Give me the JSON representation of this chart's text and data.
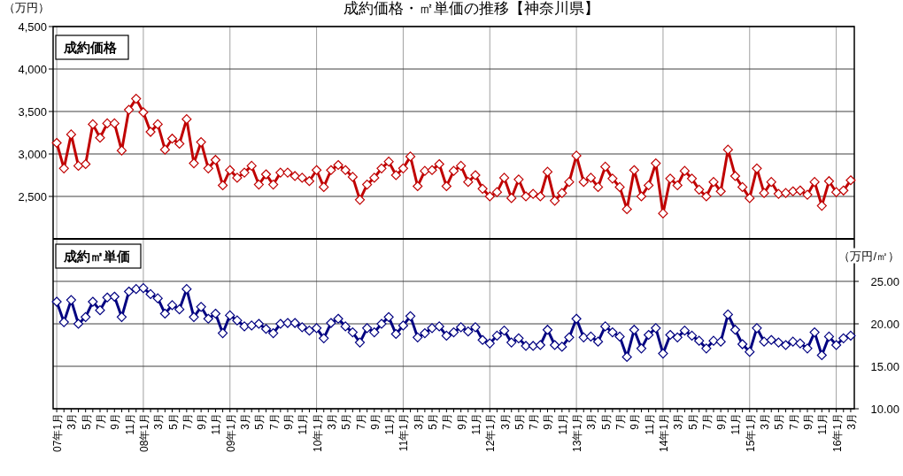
{
  "chart_data": {
    "type": "line",
    "title": "成約価格・㎡単価の推移【神奈川県】",
    "ylabel": "（万円）",
    "y2label": "（万円/㎡）",
    "annotations": [
      "成約価格",
      "成約㎡単価"
    ],
    "categories": [
      "07年1月",
      null,
      "3月",
      null,
      "5月",
      null,
      "7月",
      null,
      "9月",
      null,
      "11月",
      null,
      "08年1月",
      null,
      "3月",
      null,
      "5月",
      null,
      "7月",
      null,
      "9月",
      null,
      "11月",
      null,
      "09年1月",
      null,
      "3月",
      null,
      "5月",
      null,
      "7月",
      null,
      "9月",
      null,
      "11月",
      null,
      "10年1月",
      null,
      "3月",
      null,
      "5月",
      null,
      "7月",
      null,
      "9月",
      null,
      "11月",
      null,
      "11年1月",
      null,
      "3月",
      null,
      "5月",
      null,
      "7月",
      null,
      "9月",
      null,
      "11月",
      null,
      "12年1月",
      null,
      "3月",
      null,
      "5月",
      null,
      "7月",
      null,
      "9月",
      null,
      "11月",
      null,
      "13年1月",
      null,
      "3月",
      null,
      "5月",
      null,
      "7月",
      null,
      "9月",
      null,
      "11月",
      null,
      "14年1月",
      null,
      "3月",
      null,
      "5月",
      null,
      "7月",
      null,
      "9月",
      null,
      "11月",
      null,
      "15年1月",
      null,
      "3月",
      null,
      "5月",
      null,
      "7月",
      null,
      "9月",
      null,
      "11月",
      null,
      "16年1月",
      null,
      "3月"
    ],
    "series": [
      {
        "color": "#c00000",
        "values": [
          3130,
          2830,
          3230,
          2860,
          2880,
          3350,
          3190,
          3360,
          3360,
          3040,
          3520,
          3650,
          3490,
          3260,
          3350,
          3050,
          3180,
          3120,
          3410,
          2890,
          3140,
          2830,
          2930,
          2630,
          2810,
          2720,
          2780,
          2860,
          2640,
          2760,
          2640,
          2780,
          2780,
          2740,
          2720,
          2680,
          2810,
          2610,
          2810,
          2870,
          2810,
          2730,
          2460,
          2640,
          2720,
          2830,
          2910,
          2750,
          2830,
          2970,
          2620,
          2800,
          2810,
          2880,
          2620,
          2800,
          2860,
          2670,
          2750,
          2590,
          2500,
          2550,
          2720,
          2480,
          2700,
          2500,
          2530,
          2500,
          2790,
          2450,
          2540,
          2670,
          2980,
          2670,
          2720,
          2610,
          2850,
          2710,
          2610,
          2350,
          2810,
          2500,
          2630,
          2890,
          2300,
          2710,
          2630,
          2800,
          2710,
          2580,
          2500,
          2670,
          2560,
          3050,
          2740,
          2610,
          2480,
          2830,
          2540,
          2670,
          2530,
          2540,
          2560,
          2570,
          2520,
          2670,
          2390,
          2680,
          2550,
          2570,
          2690
        ]
      },
      {
        "color": "#000080",
        "axis": "y2",
        "values": [
          22.6,
          20.2,
          22.8,
          20.0,
          20.8,
          22.6,
          21.6,
          23.1,
          23.2,
          20.8,
          23.8,
          24.1,
          24.2,
          23.5,
          23.0,
          21.2,
          22.2,
          21.7,
          24.1,
          20.8,
          22.0,
          20.6,
          21.2,
          18.9,
          21.0,
          20.4,
          19.7,
          19.8,
          20.0,
          19.4,
          18.9,
          20.0,
          20.1,
          20.1,
          19.6,
          19.2,
          19.5,
          18.3,
          20.1,
          20.6,
          19.7,
          19.0,
          17.8,
          19.5,
          19.0,
          20.0,
          20.8,
          18.8,
          19.8,
          20.9,
          18.4,
          18.9,
          19.5,
          19.7,
          18.6,
          19.0,
          19.6,
          19.1,
          19.6,
          18.1,
          17.7,
          18.6,
          19.2,
          17.8,
          18.3,
          17.4,
          17.4,
          17.5,
          19.3,
          17.5,
          17.3,
          18.4,
          20.6,
          18.4,
          18.5,
          17.9,
          19.7,
          19.0,
          18.5,
          16.1,
          19.3,
          17.1,
          18.7,
          19.5,
          16.5,
          18.7,
          18.4,
          19.2,
          18.6,
          18.0,
          17.1,
          18.0,
          17.9,
          21.1,
          19.3,
          17.6,
          16.7,
          19.5,
          17.9,
          18.1,
          17.8,
          17.5,
          17.9,
          17.7,
          17.1,
          19.0,
          16.3,
          18.5,
          17.5,
          18.3,
          18.6
        ]
      }
    ],
    "ylim": [
      0,
      4500
    ],
    "yticks": [
      {
        "value": 2500,
        "label": "2,500"
      },
      {
        "value": 3000,
        "label": "3,000"
      },
      {
        "value": 3500,
        "label": "3,500"
      },
      {
        "value": 4000,
        "label": "4,000"
      },
      {
        "value": 4500,
        "label": "4,500"
      }
    ],
    "y2lim": [
      10,
      55
    ],
    "y2ticks": [
      {
        "value": 10,
        "label": "10.00"
      },
      {
        "value": 15,
        "label": "15.00"
      },
      {
        "value": 20,
        "label": "20.00"
      },
      {
        "value": 25,
        "label": "25.00"
      }
    ],
    "ref_lines": [
      {
        "axis": "y",
        "value": 2000,
        "color": "#000000"
      }
    ],
    "grid": true,
    "marker": "diamond",
    "line_style": "solid"
  }
}
